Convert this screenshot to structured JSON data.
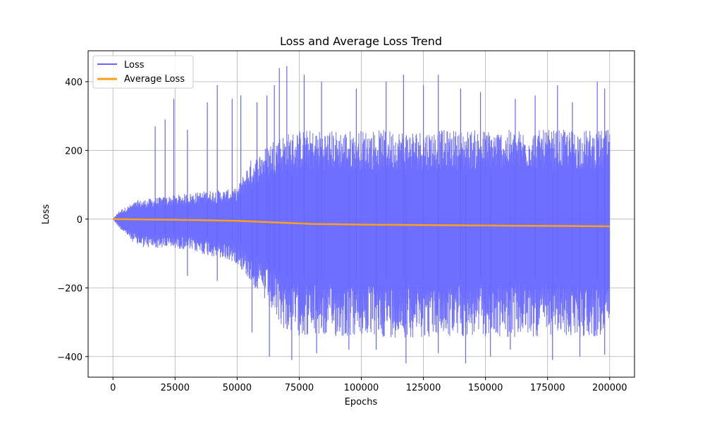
{
  "chart_data": {
    "type": "line",
    "title": "Loss and Average Loss Trend",
    "xlabel": "Epochs",
    "ylabel": "Loss",
    "xlim": [
      -10000,
      210000
    ],
    "ylim": [
      -460,
      490
    ],
    "x_ticks": [
      0,
      25000,
      50000,
      75000,
      100000,
      125000,
      150000,
      175000,
      200000
    ],
    "x_tick_labels": [
      "0",
      "25000",
      "50000",
      "75000",
      "100000",
      "125000",
      "150000",
      "175000",
      "200000"
    ],
    "y_ticks": [
      -400,
      -200,
      0,
      200,
      400
    ],
    "y_tick_labels": [
      "−400",
      "−200",
      "0",
      "200",
      "400"
    ],
    "grid": true,
    "legend_position": "top-left",
    "series": [
      {
        "name": "Loss",
        "color": "#6666ff",
        "envelope": {
          "x": [
            0,
            2500,
            5000,
            10000,
            15000,
            20000,
            25000,
            30000,
            35000,
            40000,
            45000,
            50000,
            55000,
            60000,
            65000,
            70000,
            75000,
            80000,
            90000,
            100000,
            110000,
            120000,
            130000,
            140000,
            150000,
            160000,
            170000,
            180000,
            190000,
            200000
          ],
          "upper": [
            0,
            25,
            35,
            55,
            60,
            65,
            70,
            75,
            80,
            85,
            85,
            90,
            170,
            200,
            240,
            250,
            260,
            260,
            260,
            260,
            260,
            260,
            260,
            260,
            260,
            260,
            260,
            260,
            260,
            260
          ],
          "lower": [
            0,
            -25,
            -45,
            -80,
            -85,
            -85,
            -85,
            -90,
            -100,
            -110,
            -120,
            -130,
            -180,
            -230,
            -290,
            -330,
            -340,
            -345,
            -345,
            -345,
            -345,
            -345,
            -345,
            -345,
            -345,
            -345,
            -345,
            -345,
            -345,
            -345
          ]
        },
        "spikes": [
          [
            17000,
            270
          ],
          [
            21000,
            290
          ],
          [
            24500,
            350
          ],
          [
            30000,
            260
          ],
          [
            38000,
            340
          ],
          [
            42000,
            390
          ],
          [
            48000,
            350
          ],
          [
            51500,
            360
          ],
          [
            58000,
            340
          ],
          [
            62000,
            360
          ],
          [
            65000,
            390
          ],
          [
            67000,
            440
          ],
          [
            70000,
            445
          ],
          [
            77000,
            420
          ],
          [
            84000,
            400
          ],
          [
            98000,
            380
          ],
          [
            110000,
            400
          ],
          [
            117000,
            420
          ],
          [
            125000,
            390
          ],
          [
            131000,
            420
          ],
          [
            140000,
            380
          ],
          [
            148000,
            370
          ],
          [
            162000,
            350
          ],
          [
            170000,
            360
          ],
          [
            179000,
            390
          ],
          [
            185000,
            340
          ],
          [
            195000,
            400
          ],
          [
            198000,
            380
          ],
          [
            30000,
            -165
          ],
          [
            42000,
            -180
          ],
          [
            56000,
            -330
          ],
          [
            63000,
            -400
          ],
          [
            72000,
            -410
          ],
          [
            82000,
            -390
          ],
          [
            95000,
            -380
          ],
          [
            106000,
            -380
          ],
          [
            118000,
            -420
          ],
          [
            131000,
            -390
          ],
          [
            142000,
            -420
          ],
          [
            152000,
            -400
          ],
          [
            160000,
            -380
          ],
          [
            177000,
            -410
          ],
          [
            188000,
            -400
          ],
          [
            198000,
            -395
          ]
        ]
      },
      {
        "name": "Average Loss",
        "color": "#ff9f1c",
        "x": [
          0,
          10000,
          25000,
          35000,
          50000,
          60000,
          70000,
          80000,
          100000,
          120000,
          140000,
          160000,
          180000,
          200000
        ],
        "values": [
          0,
          -1,
          -2,
          -3,
          -5,
          -8,
          -11,
          -14,
          -16,
          -17,
          -18,
          -19,
          -20,
          -21
        ]
      }
    ]
  }
}
